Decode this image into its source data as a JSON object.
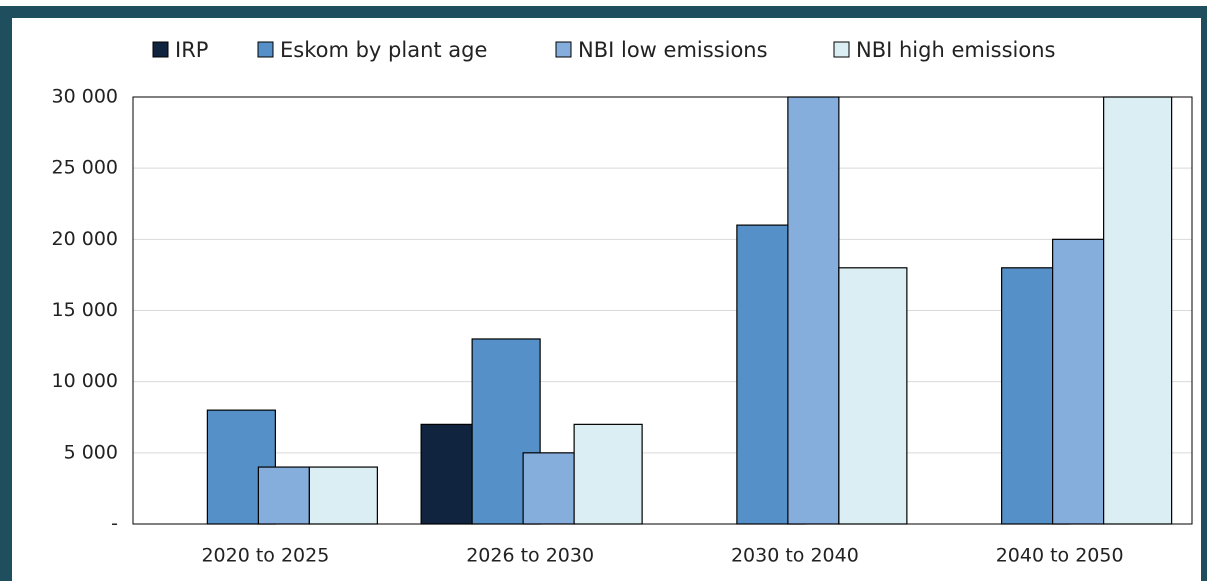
{
  "chart_data": {
    "type": "bar",
    "categories": [
      "2020 to 2025",
      "2026 to 2030",
      "2030 to 2040",
      "2040 to 2050"
    ],
    "series": [
      {
        "name": "IRP",
        "color": "#10233f",
        "values": [
          null,
          7000,
          null,
          null
        ]
      },
      {
        "name": "Eskom by plant age",
        "color": "#5590c8",
        "values": [
          8000,
          13000,
          21000,
          18000
        ]
      },
      {
        "name": "NBI low emissions",
        "color": "#86aedc",
        "values": [
          4000,
          5000,
          30000,
          20000
        ]
      },
      {
        "name": "NBI high emissions",
        "color": "#dbeef3",
        "values": [
          4000,
          7000,
          18000,
          30000
        ]
      }
    ],
    "ylim": [
      0,
      30000
    ],
    "yticks": [
      {
        "value": 0,
        "label": "-"
      },
      {
        "value": 5000,
        "label": "5 000"
      },
      {
        "value": 10000,
        "label": "10 000"
      },
      {
        "value": 15000,
        "label": "15 000"
      },
      {
        "value": 20000,
        "label": "20 000"
      },
      {
        "value": 25000,
        "label": "25 000"
      },
      {
        "value": 30000,
        "label": "30 000"
      }
    ],
    "grid": true,
    "legend": "top"
  }
}
